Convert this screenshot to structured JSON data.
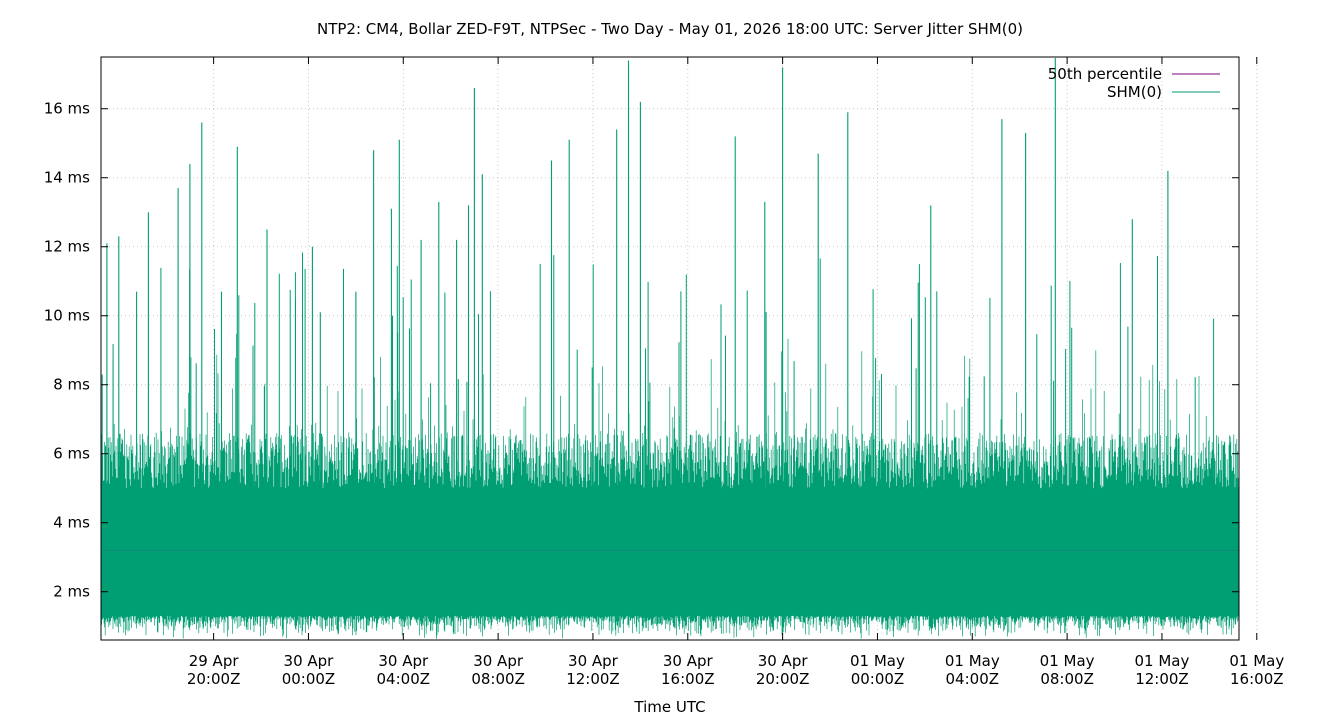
{
  "chart_data": {
    "type": "line",
    "title": "NTP2: CM4, Bollar ZED-F9T, NTPSec - Two Day - May 01, 2026 18:00 UTC: Server Jitter SHM(0)",
    "xlabel": "Time UTC",
    "ylabel": "",
    "y_unit": "ms",
    "x_range": [
      "2026-04-29T15:15Z",
      "2026-05-01T15:15Z"
    ],
    "x_range_display": [
      "29 Apr 15:15Z",
      "01 May 15:15Z"
    ],
    "ylim": [
      0.6,
      17.5
    ],
    "grid": true,
    "legend_position": "top-right",
    "y_ticks": [
      {
        "value": 2,
        "label": "2 ms"
      },
      {
        "value": 4,
        "label": "4 ms"
      },
      {
        "value": 6,
        "label": "6 ms"
      },
      {
        "value": 8,
        "label": "8 ms"
      },
      {
        "value": 10,
        "label": "10 ms"
      },
      {
        "value": 12,
        "label": "12 ms"
      },
      {
        "value": 14,
        "label": "14 ms"
      },
      {
        "value": 16,
        "label": "16 ms"
      }
    ],
    "x_ticks": [
      {
        "line1": "29 Apr",
        "line2": "20:00Z"
      },
      {
        "line1": "30 Apr",
        "line2": "00:00Z"
      },
      {
        "line1": "30 Apr",
        "line2": "04:00Z"
      },
      {
        "line1": "30 Apr",
        "line2": "08:00Z"
      },
      {
        "line1": "30 Apr",
        "line2": "12:00Z"
      },
      {
        "line1": "30 Apr",
        "line2": "16:00Z"
      },
      {
        "line1": "30 Apr",
        "line2": "20:00Z"
      },
      {
        "line1": "01 May",
        "line2": "00:00Z"
      },
      {
        "line1": "01 May",
        "line2": "04:00Z"
      },
      {
        "line1": "01 May",
        "line2": "08:00Z"
      },
      {
        "line1": "01 May",
        "line2": "12:00Z"
      },
      {
        "line1": "01 May",
        "line2": "16:00Z"
      }
    ],
    "series": [
      {
        "name": "50th percentile",
        "color": "#800080",
        "values": [
          3.2
        ]
      },
      {
        "name": "SHM(0)",
        "color": "#009e73",
        "typical_range": [
          1.4,
          6.0
        ],
        "peaks": [
          {
            "x": "29 Apr 15:30Z",
            "y": 12.1
          },
          {
            "x": "29 Apr 16:00Z",
            "y": 12.3
          },
          {
            "x": "29 Apr 16:45Z",
            "y": 10.7
          },
          {
            "x": "29 Apr 17:15Z",
            "y": 13.0
          },
          {
            "x": "29 Apr 18:30Z",
            "y": 13.7
          },
          {
            "x": "29 Apr 19:00Z",
            "y": 14.4
          },
          {
            "x": "29 Apr 19:30Z",
            "y": 15.6
          },
          {
            "x": "29 Apr 20:20Z",
            "y": 10.7
          },
          {
            "x": "29 Apr 21:00Z",
            "y": 14.9
          },
          {
            "x": "29 Apr 22:15Z",
            "y": 12.5
          },
          {
            "x": "30 Apr 00:10Z",
            "y": 12.0
          },
          {
            "x": "30 Apr 00:30Z",
            "y": 10.1
          },
          {
            "x": "30 Apr 02:00Z",
            "y": 10.7
          },
          {
            "x": "30 Apr 02:45Z",
            "y": 14.8
          },
          {
            "x": "30 Apr 03:30Z",
            "y": 13.1
          },
          {
            "x": "30 Apr 03:50Z",
            "y": 15.1
          },
          {
            "x": "30 Apr 04:45Z",
            "y": 12.2
          },
          {
            "x": "30 Apr 05:30Z",
            "y": 13.3
          },
          {
            "x": "30 Apr 06:15Z",
            "y": 12.2
          },
          {
            "x": "30 Apr 06:45Z",
            "y": 13.2
          },
          {
            "x": "30 Apr 07:00Z",
            "y": 16.6
          },
          {
            "x": "30 Apr 07:20Z",
            "y": 14.1
          },
          {
            "x": "30 Apr 10:15Z",
            "y": 14.5
          },
          {
            "x": "30 Apr 11:00Z",
            "y": 15.1
          },
          {
            "x": "30 Apr 13:00Z",
            "y": 15.4
          },
          {
            "x": "30 Apr 13:30Z",
            "y": 17.4
          },
          {
            "x": "30 Apr 14:00Z",
            "y": 16.2
          },
          {
            "x": "30 Apr 18:00Z",
            "y": 15.2
          },
          {
            "x": "30 Apr 19:15Z",
            "y": 13.3
          },
          {
            "x": "30 Apr 20:00Z",
            "y": 17.2
          },
          {
            "x": "30 Apr 21:30Z",
            "y": 14.7
          },
          {
            "x": "30 Apr 22:45Z",
            "y": 15.9
          },
          {
            "x": "01 May 02:15Z",
            "y": 13.2
          },
          {
            "x": "01 May 05:15Z",
            "y": 15.7
          },
          {
            "x": "01 May 06:15Z",
            "y": 15.3
          },
          {
            "x": "01 May 07:30Z",
            "y": 17.5
          },
          {
            "x": "01 May 10:45Z",
            "y": 12.8
          },
          {
            "x": "01 May 12:15Z",
            "y": 14.2
          }
        ]
      }
    ]
  }
}
